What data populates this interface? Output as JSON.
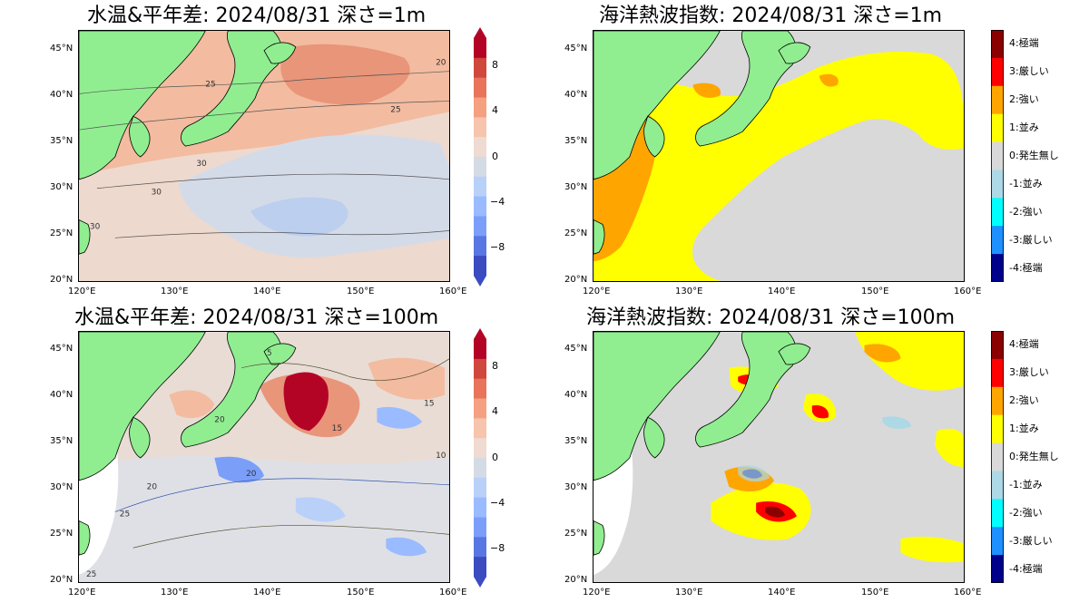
{
  "panels": [
    {
      "title": "水温&平年差: 2024/08/31 深さ=1m"
    },
    {
      "title": "海洋熱波指数: 2024/08/31 深さ=1m"
    },
    {
      "title": "水温&平年差: 2024/08/31 深さ=100m"
    },
    {
      "title": "海洋熱波指数: 2024/08/31 深さ=100m"
    }
  ],
  "axes": {
    "lon_ticks": [
      "120°E",
      "130°E",
      "140°E",
      "150°E",
      "160°E"
    ],
    "lat_ticks": [
      "45°N",
      "40°N",
      "35°N",
      "30°N",
      "25°N",
      "20°N"
    ]
  },
  "anomaly_colorbar": {
    "tick_labels": [
      "8",
      "4",
      "0",
      "−4",
      "−8"
    ],
    "colors": [
      "#b40426",
      "#d0473d",
      "#e7745b",
      "#f5a081",
      "#f7c4ad",
      "#efdbd1",
      "#d5dbe5",
      "#b9d0f9",
      "#9abbff",
      "#7b9ff9",
      "#5977e3",
      "#3b4cc0"
    ]
  },
  "mhw_colorbar": {
    "labels": [
      "4:極端",
      "3:厳しい",
      "2:強い",
      "1:並み",
      "0:発生無し",
      "-1:並み",
      "-2:強い",
      "-3:厳しい",
      "-4:極端"
    ],
    "colors": [
      "#8b0000",
      "#ff0000",
      "#ffa500",
      "#ffff00",
      "#d9d9d9",
      "#add8e6",
      "#00ffff",
      "#1e90ff",
      "#00008b"
    ]
  },
  "contour_labels": {
    "p1": [
      "25",
      "20",
      "25",
      "30",
      "30",
      "30"
    ],
    "p3": [
      "5",
      "20",
      "15",
      "15",
      "10",
      "20",
      "20",
      "25",
      "25"
    ]
  },
  "colors": {
    "land": "#90ee90",
    "no_data": "#ffffff"
  }
}
